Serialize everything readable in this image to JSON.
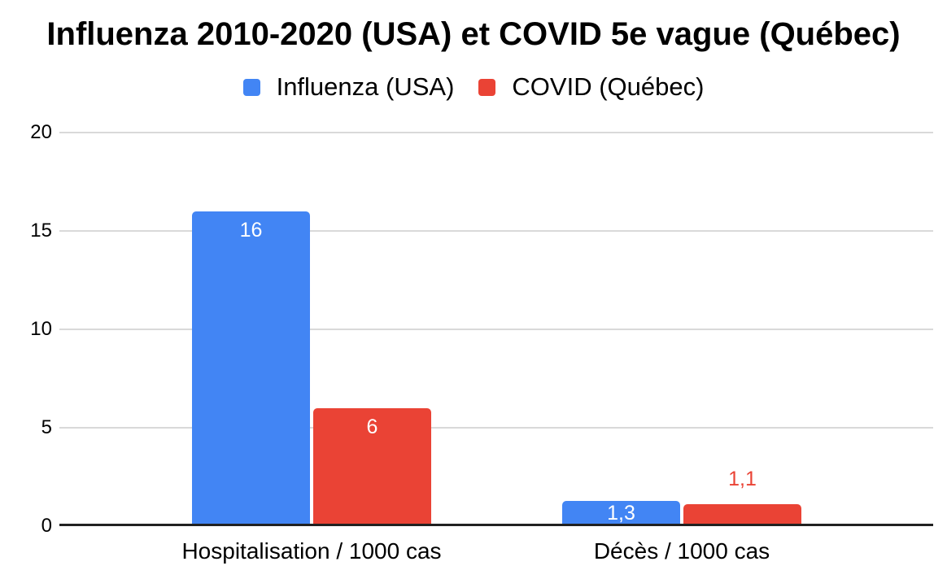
{
  "chart_data": {
    "type": "bar",
    "title": "Influenza 2010-2020 (USA) et COVID 5e vague (Québec)",
    "categories": [
      "Hospitalisation / 1000 cas",
      "Décès / 1000 cas"
    ],
    "series": [
      {
        "name": "Influenza (USA)",
        "color": "#4285f4",
        "values": [
          16,
          1.3
        ],
        "data_labels": [
          {
            "text": "16",
            "position": "inside"
          },
          {
            "text": "1,3",
            "position": "inside"
          }
        ]
      },
      {
        "name": "COVID (Québec)",
        "color": "#ea4335",
        "values": [
          6,
          1.1
        ],
        "data_labels": [
          {
            "text": "6",
            "position": "inside"
          },
          {
            "text": "1,1",
            "position": "above"
          }
        ]
      }
    ],
    "xlabel": "",
    "ylabel": "",
    "ylim": [
      0,
      20
    ],
    "yticks": [
      {
        "value": 0,
        "label": "0"
      },
      {
        "value": 5,
        "label": "5"
      },
      {
        "value": 10,
        "label": "10"
      },
      {
        "value": 15,
        "label": "15"
      },
      {
        "value": 20,
        "label": "20"
      }
    ],
    "grid": true,
    "legend_position": "top",
    "inside_label_color": "#ffffff",
    "gridline_color": "#d9d9d9",
    "axis_line_color": "#212121"
  }
}
